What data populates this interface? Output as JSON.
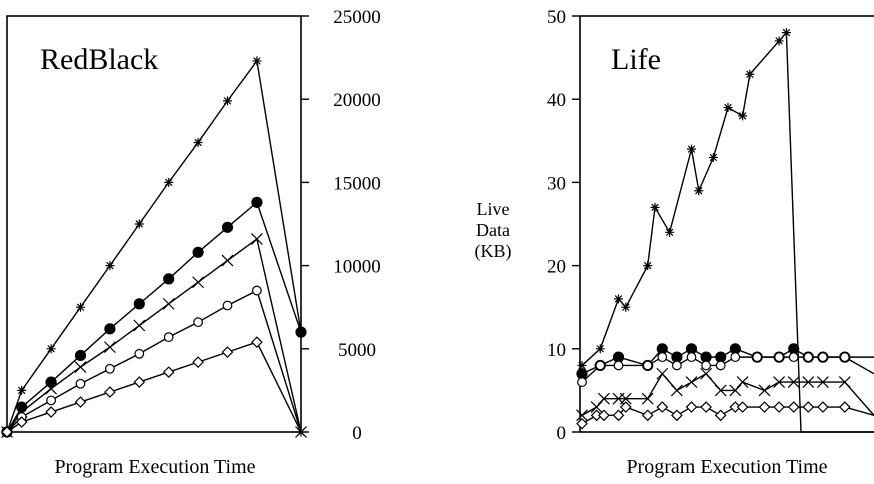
{
  "chart_data": [
    {
      "type": "line",
      "title": "RedBlack",
      "xlabel": "Program Execution Time",
      "ylabel": "",
      "xlim": [
        0,
        17
      ],
      "ylim": [
        0,
        25000
      ],
      "yticks": [
        0,
        5000,
        10000,
        15000,
        20000,
        25000
      ],
      "yaxis_side": "right",
      "grid": false,
      "legend": "none",
      "series": [
        {
          "marker": "star",
          "x": [
            0,
            1,
            3,
            5,
            7,
            9,
            11,
            13,
            15,
            17
          ],
          "y": [
            0,
            2500,
            5000,
            7500,
            10000,
            12500,
            15000,
            17400,
            19900,
            22300
          ]
        },
        {
          "marker": "dot",
          "x": [
            0,
            1,
            3,
            5,
            7,
            9,
            11,
            13,
            15,
            17
          ],
          "y": [
            0,
            1500,
            3000,
            4600,
            6200,
            7700,
            9200,
            10800,
            12300,
            13800
          ]
        },
        {
          "marker": "cross",
          "x": [
            0,
            1,
            3,
            5,
            7,
            9,
            11,
            13,
            15,
            17
          ],
          "y": [
            0,
            1200,
            2600,
            3900,
            5100,
            6400,
            7700,
            9000,
            10300,
            11600
          ]
        },
        {
          "marker": "circle",
          "x": [
            0,
            1,
            3,
            5,
            7,
            9,
            11,
            13,
            15,
            17
          ],
          "y": [
            0,
            900,
            1900,
            2900,
            3800,
            4700,
            5700,
            6600,
            7600,
            8500
          ]
        },
        {
          "marker": "diamond",
          "x": [
            0,
            1,
            3,
            5,
            7,
            9,
            11,
            13,
            15,
            17
          ],
          "y": [
            0,
            600,
            1200,
            1800,
            2400,
            3000,
            3600,
            4200,
            4800,
            5400
          ]
        }
      ],
      "end_drop": {
        "x": 20,
        "y": [
          6000,
          0
        ]
      }
    },
    {
      "type": "line",
      "title": "Life",
      "xlabel": "Program Execution Time",
      "ylabel": "Live Data (KB)",
      "ylabel_lines": [
        "Live",
        "Data",
        "(KB)"
      ],
      "xlim": [
        0,
        40
      ],
      "ylim": [
        0,
        50
      ],
      "yticks": [
        0,
        10,
        20,
        30,
        40,
        50
      ],
      "yaxis_side": "left",
      "grid": false,
      "legend": "none",
      "series": [
        {
          "marker": "star",
          "x": [
            0,
            2.5,
            5,
            6,
            9,
            10,
            12,
            15,
            16,
            18,
            20,
            22,
            23,
            27,
            28,
            30,
            31,
            40
          ],
          "y": [
            8,
            10,
            16,
            15,
            20,
            27,
            24,
            34,
            29,
            33,
            39,
            38,
            43,
            47,
            48,
            0,
            0,
            0
          ]
        },
        {
          "marker": "dot",
          "x": [
            0,
            2.5,
            5,
            9,
            11,
            13,
            15,
            17,
            19,
            21,
            24,
            27,
            29,
            31,
            33,
            36,
            40
          ],
          "y": [
            7,
            8,
            9,
            8,
            10,
            9,
            10,
            9,
            9,
            10,
            9,
            9,
            10,
            9,
            9,
            9,
            9
          ]
        },
        {
          "marker": "circle",
          "x": [
            0,
            2.5,
            5,
            9,
            11,
            13,
            15,
            17,
            19,
            21,
            24,
            27,
            29,
            31,
            33,
            36,
            40
          ],
          "y": [
            6,
            8,
            8,
            8,
            9,
            8,
            9,
            8,
            8,
            9,
            9,
            9,
            9,
            9,
            9,
            9,
            7
          ]
        },
        {
          "marker": "cross",
          "x": [
            0,
            2,
            3,
            5,
            6,
            9,
            11,
            13,
            15,
            17,
            19,
            21,
            22,
            25,
            27,
            29,
            31,
            33,
            36,
            40
          ],
          "y": [
            2,
            3,
            4,
            4,
            4,
            4,
            7,
            5,
            6,
            7,
            5,
            5,
            6,
            5,
            6,
            6,
            6,
            6,
            6,
            2
          ]
        },
        {
          "marker": "diamond",
          "x": [
            0,
            2,
            3,
            5,
            6,
            9,
            11,
            13,
            15,
            17,
            19,
            21,
            22,
            25,
            27,
            29,
            31,
            33,
            36,
            40
          ],
          "y": [
            1,
            2,
            2,
            2,
            3,
            2,
            3,
            2,
            3,
            3,
            2,
            3,
            3,
            3,
            3,
            3,
            3,
            3,
            3,
            2
          ]
        }
      ]
    }
  ]
}
